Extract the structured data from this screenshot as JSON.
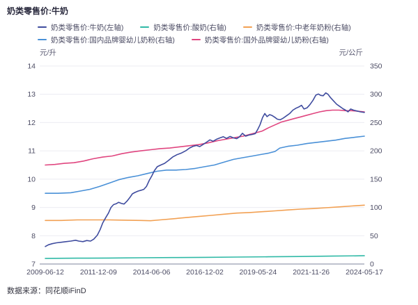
{
  "page": {
    "title": "奶类零售价:牛奶",
    "footer": {
      "source_label": "数据来源：同花顺iFinD"
    }
  },
  "axes": {
    "left_unit": "元/升",
    "right_unit": "元/公斤"
  },
  "colors": {
    "grid": "#ebebf2",
    "baseline": "#b4b8c6",
    "tick_text": "#4c4c64",
    "title_text": "#28283c"
  },
  "chart_data": {
    "type": "line",
    "title": "奶类零售价:牛奶",
    "x_domain": [
      "2009-06-12",
      "2024-05-17"
    ],
    "x_tick_labels": [
      "2009-06-12",
      "2011-12-09",
      "2014-06-06",
      "2016-12-02",
      "2019-05-24",
      "2021-11-26",
      "2024-05-17"
    ],
    "left_axis": {
      "label": "元/升",
      "min": 7,
      "max": 14,
      "ticks": [
        14,
        13,
        12,
        11,
        10,
        9,
        8,
        7
      ]
    },
    "right_axis": {
      "label": "元/公斤",
      "min": 0,
      "max": 350,
      "ticks": [
        350,
        300,
        250,
        200,
        150,
        100,
        50,
        0
      ]
    },
    "grid": "horizontal",
    "legend_position": "top",
    "series": [
      {
        "key": "milk",
        "name": "奶类零售价:牛奶(左轴)",
        "axis": "left",
        "color": "#3e4b9e",
        "z": 5,
        "points": [
          [
            0.0,
            7.62
          ],
          [
            0.01,
            7.68
          ],
          [
            0.022,
            7.72
          ],
          [
            0.035,
            7.75
          ],
          [
            0.05,
            7.77
          ],
          [
            0.065,
            7.79
          ],
          [
            0.08,
            7.81
          ],
          [
            0.095,
            7.84
          ],
          [
            0.105,
            7.81
          ],
          [
            0.118,
            7.79
          ],
          [
            0.13,
            7.83
          ],
          [
            0.142,
            7.81
          ],
          [
            0.152,
            7.88
          ],
          [
            0.163,
            8.02
          ],
          [
            0.172,
            8.22
          ],
          [
            0.18,
            8.45
          ],
          [
            0.19,
            8.65
          ],
          [
            0.198,
            8.8
          ],
          [
            0.206,
            9.0
          ],
          [
            0.214,
            9.1
          ],
          [
            0.222,
            9.13
          ],
          [
            0.23,
            9.18
          ],
          [
            0.239,
            9.14
          ],
          [
            0.247,
            9.12
          ],
          [
            0.256,
            9.22
          ],
          [
            0.265,
            9.35
          ],
          [
            0.273,
            9.48
          ],
          [
            0.281,
            9.53
          ],
          [
            0.291,
            9.58
          ],
          [
            0.301,
            9.61
          ],
          [
            0.309,
            9.64
          ],
          [
            0.317,
            9.74
          ],
          [
            0.326,
            9.96
          ],
          [
            0.334,
            10.12
          ],
          [
            0.342,
            10.3
          ],
          [
            0.351,
            10.44
          ],
          [
            0.362,
            10.5
          ],
          [
            0.374,
            10.56
          ],
          [
            0.386,
            10.66
          ],
          [
            0.399,
            10.78
          ],
          [
            0.412,
            10.86
          ],
          [
            0.426,
            10.92
          ],
          [
            0.44,
            11.0
          ],
          [
            0.452,
            11.1
          ],
          [
            0.463,
            11.16
          ],
          [
            0.474,
            11.19
          ],
          [
            0.484,
            11.15
          ],
          [
            0.495,
            11.23
          ],
          [
            0.506,
            11.31
          ],
          [
            0.516,
            11.39
          ],
          [
            0.526,
            11.34
          ],
          [
            0.537,
            11.41
          ],
          [
            0.548,
            11.46
          ],
          [
            0.558,
            11.5
          ],
          [
            0.568,
            11.44
          ],
          [
            0.579,
            11.51
          ],
          [
            0.589,
            11.46
          ],
          [
            0.6,
            11.43
          ],
          [
            0.609,
            11.5
          ],
          [
            0.618,
            11.62
          ],
          [
            0.628,
            11.52
          ],
          [
            0.639,
            11.56
          ],
          [
            0.649,
            11.58
          ],
          [
            0.658,
            11.61
          ],
          [
            0.666,
            11.76
          ],
          [
            0.673,
            11.92
          ],
          [
            0.681,
            12.18
          ],
          [
            0.688,
            12.32
          ],
          [
            0.695,
            12.21
          ],
          [
            0.703,
            12.28
          ],
          [
            0.711,
            12.25
          ],
          [
            0.719,
            12.19
          ],
          [
            0.727,
            12.12
          ],
          [
            0.736,
            12.1
          ],
          [
            0.746,
            12.16
          ],
          [
            0.756,
            12.24
          ],
          [
            0.766,
            12.32
          ],
          [
            0.776,
            12.44
          ],
          [
            0.786,
            12.51
          ],
          [
            0.796,
            12.56
          ],
          [
            0.803,
            12.61
          ],
          [
            0.811,
            12.48
          ],
          [
            0.82,
            12.52
          ],
          [
            0.829,
            12.63
          ],
          [
            0.839,
            12.79
          ],
          [
            0.848,
            12.97
          ],
          [
            0.856,
            13.01
          ],
          [
            0.863,
            12.96
          ],
          [
            0.871,
            12.95
          ],
          [
            0.879,
            13.05
          ],
          [
            0.886,
            13.0
          ],
          [
            0.894,
            12.88
          ],
          [
            0.903,
            12.77
          ],
          [
            0.913,
            12.65
          ],
          [
            0.923,
            12.57
          ],
          [
            0.933,
            12.49
          ],
          [
            0.941,
            12.44
          ],
          [
            0.949,
            12.38
          ],
          [
            0.957,
            12.48
          ],
          [
            0.966,
            12.44
          ],
          [
            0.976,
            12.41
          ],
          [
            0.988,
            12.38
          ],
          [
            1.0,
            12.36
          ]
        ]
      },
      {
        "key": "yogurt",
        "name": "奶类零售价:酸奶(右轴)",
        "axis": "right",
        "color": "#2fb9a6",
        "z": 1,
        "points": [
          [
            0.0,
            10
          ],
          [
            0.1,
            10.3
          ],
          [
            0.2,
            10.6
          ],
          [
            0.3,
            11
          ],
          [
            0.4,
            11.4
          ],
          [
            0.5,
            11.8
          ],
          [
            0.6,
            12.3
          ],
          [
            0.7,
            12.8
          ],
          [
            0.8,
            13.3
          ],
          [
            0.9,
            14
          ],
          [
            1.0,
            14.6
          ]
        ]
      },
      {
        "key": "middle-aged-milk-powder",
        "name": "奶类零售价:中老年奶粉(右轴)",
        "axis": "right",
        "color": "#f2a052",
        "z": 2,
        "points": [
          [
            0.0,
            77
          ],
          [
            0.05,
            77
          ],
          [
            0.1,
            78
          ],
          [
            0.15,
            78
          ],
          [
            0.2,
            78
          ],
          [
            0.25,
            77.5
          ],
          [
            0.3,
            77
          ],
          [
            0.33,
            76.5
          ],
          [
            0.36,
            78
          ],
          [
            0.4,
            80
          ],
          [
            0.44,
            82
          ],
          [
            0.48,
            84
          ],
          [
            0.52,
            86
          ],
          [
            0.56,
            88
          ],
          [
            0.6,
            90
          ],
          [
            0.64,
            91
          ],
          [
            0.68,
            92.5
          ],
          [
            0.72,
            94
          ],
          [
            0.76,
            95.5
          ],
          [
            0.8,
            97
          ],
          [
            0.84,
            98
          ],
          [
            0.88,
            99.5
          ],
          [
            0.92,
            101
          ],
          [
            0.96,
            102.5
          ],
          [
            1.0,
            104
          ]
        ]
      },
      {
        "key": "domestic-infant-formula",
        "name": "奶类零售价:国内品牌婴幼儿奶粉(右轴)",
        "axis": "right",
        "color": "#4990d7",
        "z": 3,
        "points": [
          [
            0.0,
            125
          ],
          [
            0.04,
            125
          ],
          [
            0.08,
            126
          ],
          [
            0.11,
            129
          ],
          [
            0.14,
            132
          ],
          [
            0.17,
            137
          ],
          [
            0.2,
            143
          ],
          [
            0.23,
            149
          ],
          [
            0.26,
            153
          ],
          [
            0.29,
            156
          ],
          [
            0.32,
            160
          ],
          [
            0.35,
            164
          ],
          [
            0.38,
            166
          ],
          [
            0.41,
            166
          ],
          [
            0.44,
            167
          ],
          [
            0.47,
            169
          ],
          [
            0.5,
            172
          ],
          [
            0.53,
            175
          ],
          [
            0.56,
            180
          ],
          [
            0.59,
            185
          ],
          [
            0.62,
            188
          ],
          [
            0.65,
            191
          ],
          [
            0.68,
            194
          ],
          [
            0.7,
            196
          ],
          [
            0.72,
            199
          ],
          [
            0.735,
            205
          ],
          [
            0.76,
            208
          ],
          [
            0.79,
            210
          ],
          [
            0.82,
            213
          ],
          [
            0.85,
            215
          ],
          [
            0.88,
            217
          ],
          [
            0.91,
            219
          ],
          [
            0.94,
            222
          ],
          [
            0.97,
            224
          ],
          [
            1.0,
            226
          ]
        ]
      },
      {
        "key": "foreign-infant-formula",
        "name": "奶类零售价:国外品牌婴幼儿奶粉(右轴)",
        "axis": "right",
        "color": "#e0457f",
        "z": 4,
        "points": [
          [
            0.0,
            175
          ],
          [
            0.03,
            176
          ],
          [
            0.06,
            178
          ],
          [
            0.09,
            179
          ],
          [
            0.12,
            182
          ],
          [
            0.15,
            186
          ],
          [
            0.18,
            189
          ],
          [
            0.21,
            191
          ],
          [
            0.24,
            195
          ],
          [
            0.27,
            198
          ],
          [
            0.3,
            200
          ],
          [
            0.33,
            202
          ],
          [
            0.36,
            204
          ],
          [
            0.39,
            205
          ],
          [
            0.42,
            207
          ],
          [
            0.45,
            209
          ],
          [
            0.48,
            211
          ],
          [
            0.51,
            214
          ],
          [
            0.54,
            218
          ],
          [
            0.57,
            221
          ],
          [
            0.6,
            224
          ],
          [
            0.62,
            226
          ],
          [
            0.64,
            229
          ],
          [
            0.66,
            232
          ],
          [
            0.68,
            235
          ],
          [
            0.7,
            241
          ],
          [
            0.72,
            246
          ],
          [
            0.74,
            251
          ],
          [
            0.76,
            254
          ],
          [
            0.78,
            257
          ],
          [
            0.8,
            260
          ],
          [
            0.82,
            263
          ],
          [
            0.84,
            266
          ],
          [
            0.86,
            269
          ],
          [
            0.88,
            271
          ],
          [
            0.9,
            272
          ],
          [
            0.92,
            272
          ],
          [
            0.94,
            271
          ],
          [
            0.96,
            271
          ],
          [
            0.98,
            270
          ],
          [
            1.0,
            269
          ]
        ]
      }
    ]
  }
}
